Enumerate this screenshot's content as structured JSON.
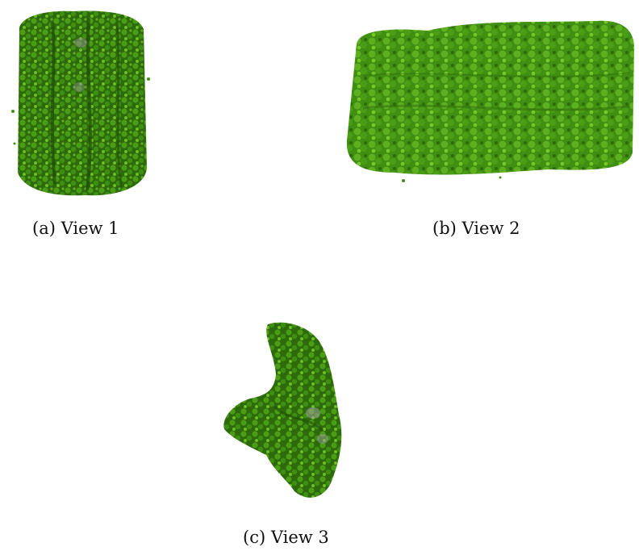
{
  "figure": {
    "panels": [
      {
        "id": "a",
        "caption": "(a) View 1",
        "description_color": "#3f8f12"
      },
      {
        "id": "b",
        "caption": "(b) View 2",
        "description_color": "#4d9e18"
      },
      {
        "id": "c",
        "caption": "(c) View 3",
        "description_color": "#3f8f12"
      }
    ]
  },
  "colors": {
    "green_dark": "#2c6a0c",
    "green_mid": "#3f8f12",
    "green_light": "#6cc024",
    "gray_core": "#8a8a8a"
  }
}
